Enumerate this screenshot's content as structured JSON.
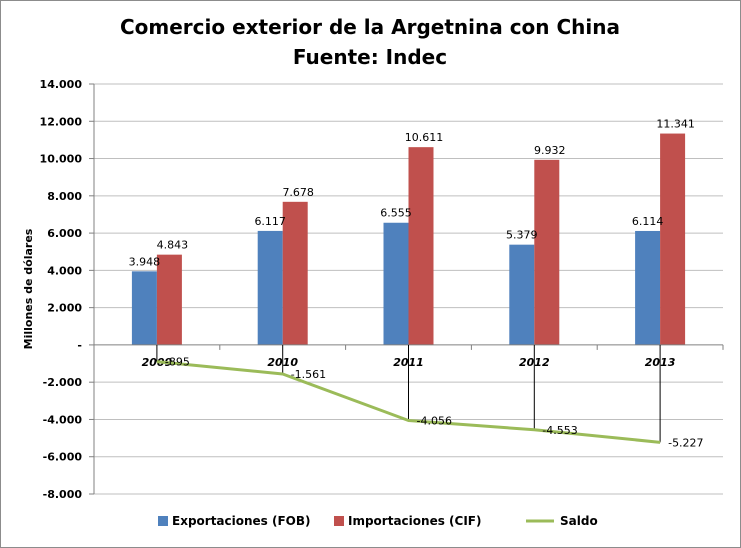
{
  "chart_data": {
    "type": "bar",
    "title": [
      "Comercio exterior de la Argetnina con China",
      "Fuente: Indec"
    ],
    "ylabel": "Millones de dólares",
    "xlabel": "",
    "categories": [
      "2009",
      "2010",
      "2011",
      "2012",
      "2013"
    ],
    "ylim": [
      -8000,
      14000
    ],
    "yticks": [
      14000,
      12000,
      10000,
      8000,
      6000,
      4000,
      2000,
      0,
      -2000,
      -4000,
      -6000,
      -8000
    ],
    "ytick_labels": [
      "14.000",
      "12.000",
      "10.000",
      "8.000",
      "6.000",
      "4.000",
      "2.000",
      "-",
      "-2.000",
      "-4.000",
      "-6.000",
      "-8.000"
    ],
    "grid": true,
    "legend_position": "bottom",
    "series": [
      {
        "name": "Exportaciones (FOB)",
        "type": "bar",
        "color": "#4f81bd",
        "values": [
          3948,
          6117,
          6555,
          5379,
          6114
        ],
        "labels": [
          "3.948",
          "6.117",
          "6.555",
          "5.379",
          "6.114"
        ]
      },
      {
        "name": "Importaciones (CIF)",
        "type": "bar",
        "color": "#c0504d",
        "values": [
          4843,
          7678,
          10611,
          9932,
          11341
        ],
        "labels": [
          "4.843",
          "7.678",
          "10.611",
          "9.932",
          "11.341"
        ]
      },
      {
        "name": "Saldo",
        "type": "line",
        "color": "#9bbb59",
        "values": [
          -895,
          -1561,
          -4056,
          -4553,
          -5227
        ],
        "labels": [
          "-895",
          "-1.561",
          "-4.056",
          "-4.553",
          "-5.227"
        ]
      }
    ]
  }
}
